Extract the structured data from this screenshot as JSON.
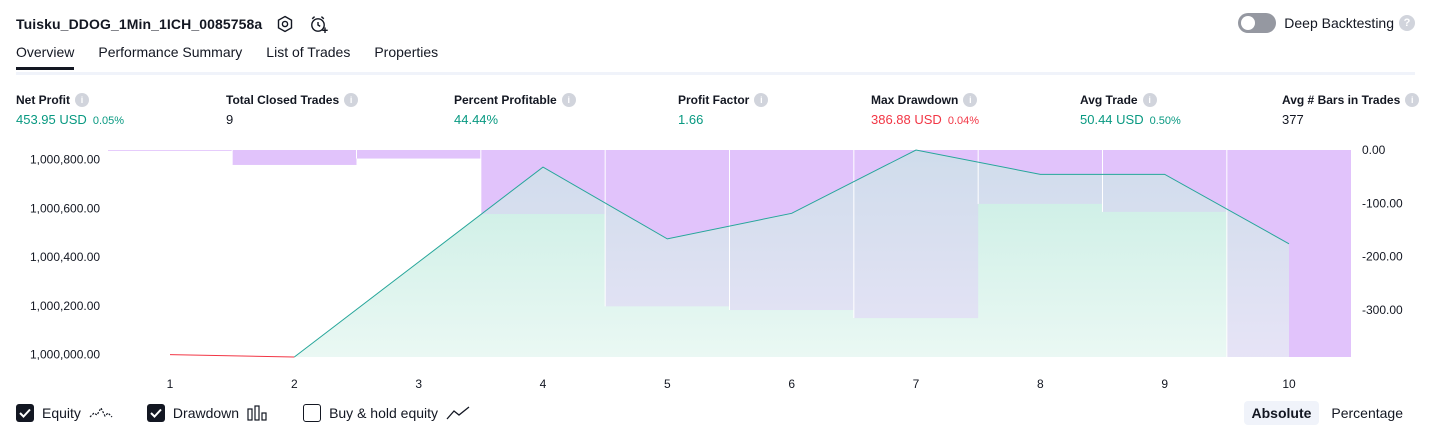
{
  "header": {
    "strategy_name": "Tuisku_DDOG_1Min_1ICH_0085758a",
    "deep_backtesting_label": "Deep Backtesting",
    "deep_backtesting_enabled": false
  },
  "tabs": [
    {
      "label": "Overview",
      "active": true
    },
    {
      "label": "Performance Summary",
      "active": false
    },
    {
      "label": "List of Trades",
      "active": false
    },
    {
      "label": "Properties",
      "active": false
    }
  ],
  "metrics": [
    {
      "label": "Net Profit",
      "value": "453.95 USD",
      "pct": "0.05%",
      "tone": "green"
    },
    {
      "label": "Total Closed Trades",
      "value": "9",
      "pct": "",
      "tone": "black"
    },
    {
      "label": "Percent Profitable",
      "value": "44.44%",
      "pct": "",
      "tone": "green"
    },
    {
      "label": "Profit Factor",
      "value": "1.66",
      "pct": "",
      "tone": "green"
    },
    {
      "label": "Max Drawdown",
      "value": "386.88 USD",
      "pct": "0.04%",
      "tone": "red"
    },
    {
      "label": "Avg Trade",
      "value": "50.44 USD",
      "pct": "0.50%",
      "tone": "green"
    },
    {
      "label": "Avg # Bars in Trades",
      "value": "377",
      "pct": "",
      "tone": "black"
    }
  ],
  "chart_data": {
    "type": "area",
    "x": [
      1,
      2,
      3,
      4,
      5,
      6,
      7,
      8,
      9,
      10
    ],
    "series": [
      {
        "name": "Equity",
        "axis": "left",
        "values": [
          1000000,
          999990,
          1000380,
          1000770,
          1000475,
          1000580,
          1000840,
          1000740,
          1000740,
          1000455
        ]
      },
      {
        "name": "Drawdown",
        "axis": "right",
        "values": [
          0,
          -28,
          -16,
          -120,
          -293,
          -300,
          -315,
          -101,
          -116,
          -388
        ]
      }
    ],
    "left_axis": {
      "ticks": [
        "1,000,000.00",
        "1,000,200.00",
        "1,000,400.00",
        "1,000,600.00",
        "1,000,800.00"
      ],
      "tick_values": [
        1000000,
        1000200,
        1000400,
        1000600,
        1000800
      ],
      "ylim": [
        999990,
        1000840
      ]
    },
    "right_axis": {
      "ticks": [
        "0.00",
        "-100.00",
        "-200.00",
        "-300.00"
      ],
      "tick_values": [
        0,
        -100,
        -200,
        -300
      ],
      "ylim": [
        -388,
        0
      ]
    },
    "colors": {
      "equity_line": "#26a69a",
      "equity_negative": "#f23645",
      "equity_fill": "#d3f2ea",
      "drawdown_fill": "#e1c4fb"
    }
  },
  "legend": {
    "equity": {
      "label": "Equity",
      "checked": true
    },
    "drawdown": {
      "label": "Drawdown",
      "checked": true
    },
    "buy_hold": {
      "label": "Buy & hold equity",
      "checked": false
    }
  },
  "mode": {
    "absolute_label": "Absolute",
    "percentage_label": "Percentage",
    "selected": "Absolute"
  }
}
